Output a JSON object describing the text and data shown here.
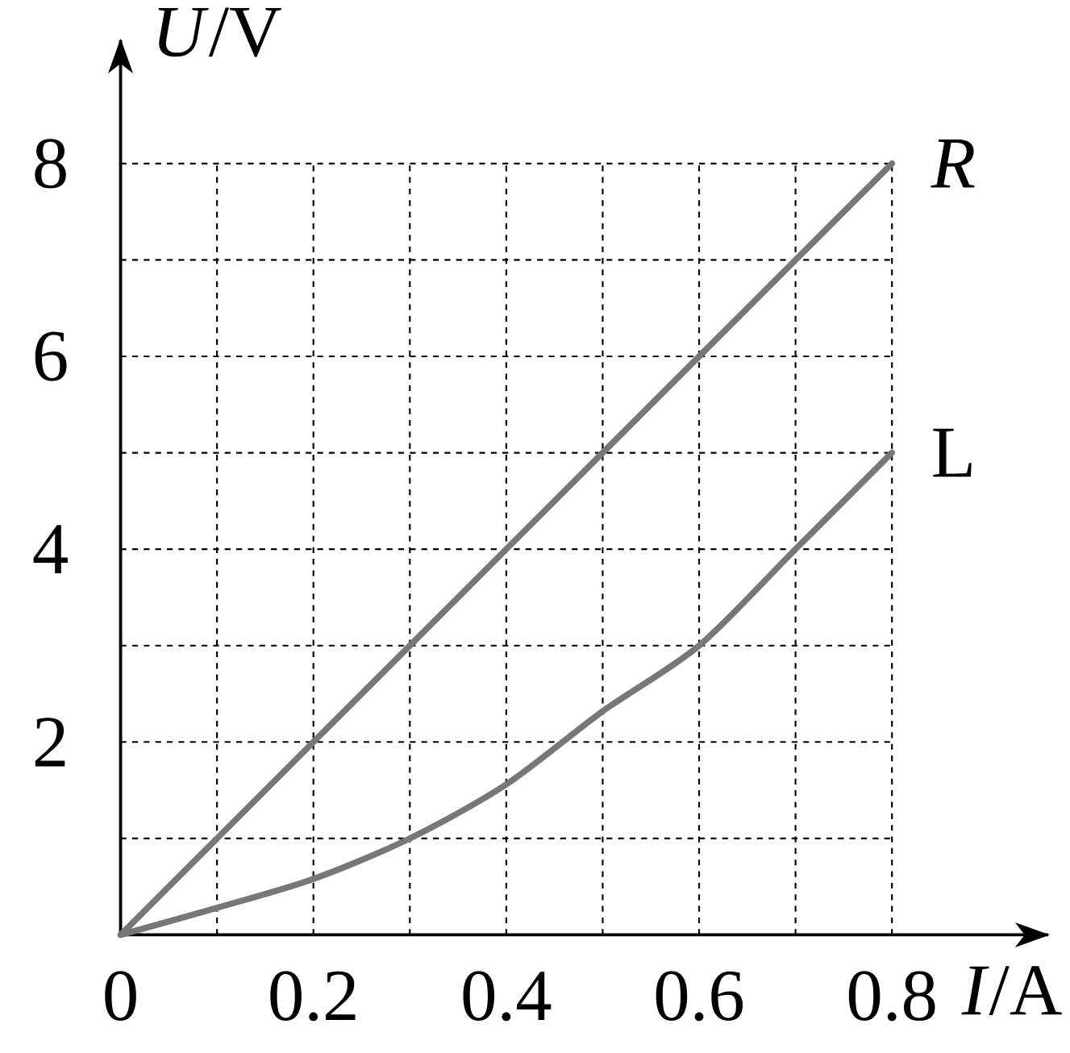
{
  "chart_data": {
    "type": "line",
    "xlabel": "*I*/A",
    "ylabel": "*U*/V",
    "xlim": [
      0,
      0.8
    ],
    "ylim": [
      0,
      8
    ],
    "xticks": [
      0,
      {
        "value": 0.1,
        "label": null
      },
      0.2,
      {
        "value": 0.3,
        "label": null
      },
      0.4,
      {
        "value": 0.5,
        "label": null
      },
      0.6,
      {
        "value": 0.7,
        "label": null
      },
      0.8
    ],
    "yticks": [
      {
        "value": 1,
        "label": null
      },
      2,
      {
        "value": 3,
        "label": null
      },
      4,
      {
        "value": 5,
        "label": null
      },
      6,
      {
        "value": 7,
        "label": null
      },
      8
    ],
    "grid": true,
    "line_style": "solid",
    "marker": "none",
    "series": [
      {
        "name": "*R*",
        "color": "#777777",
        "x": [
          0,
          0.1,
          0.2,
          0.3,
          0.4,
          0.5,
          0.6,
          0.7,
          0.8
        ],
        "values": [
          0,
          1,
          2,
          3,
          4,
          5,
          6,
          7,
          8
        ]
      },
      {
        "name": "L",
        "color": "#777777",
        "x": [
          0,
          0.1,
          0.2,
          0.3,
          0.4,
          0.5,
          0.6,
          0.7,
          0.8
        ],
        "values": [
          0,
          0.28,
          0.58,
          1.0,
          1.56,
          2.32,
          3.0,
          4.0,
          5.0
        ]
      }
    ]
  }
}
